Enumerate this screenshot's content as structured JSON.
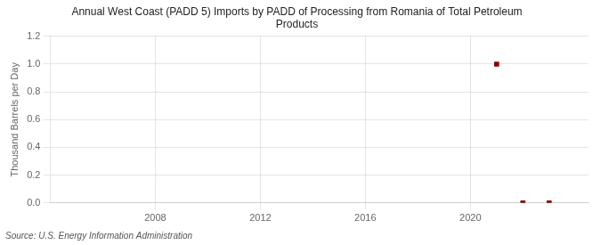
{
  "chart_data": {
    "type": "scatter",
    "title": "Annual West Coast (PADD 5) Imports by PADD of Processing from Romania of Total Petroleum\nProducts",
    "ylabel": "Thousand Barrels per Day",
    "annotation": "Source: U.S. Energy Information Administration",
    "x": [
      2021,
      2022,
      2023
    ],
    "values": [
      1.0,
      0.0,
      0.0
    ],
    "color": "#8b0000",
    "marker": "square",
    "xlim": [
      2004,
      2024.5
    ],
    "ylim": [
      0,
      1.2
    ],
    "xticks": [
      2008,
      2012,
      2016,
      2020
    ],
    "yticks": [
      {
        "value": 0.0,
        "label": "0.0"
      },
      {
        "value": 0.2,
        "label": "0.2"
      },
      {
        "value": 0.4,
        "label": "0.4"
      },
      {
        "value": 0.6,
        "label": "0.6"
      },
      {
        "value": 0.8,
        "label": "0.8"
      },
      {
        "value": 1.0,
        "label": "1.0"
      },
      {
        "value": 1.2,
        "label": "1.2"
      }
    ],
    "grid": true
  }
}
